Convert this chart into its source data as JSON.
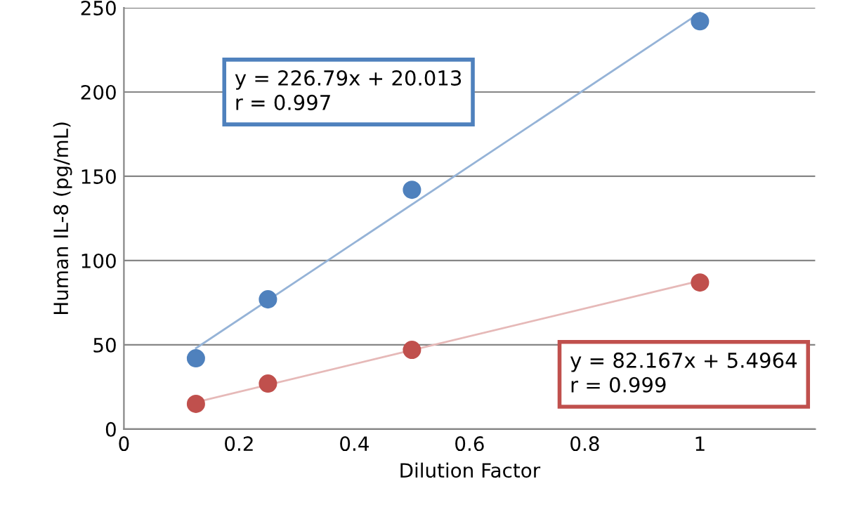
{
  "chart_data": {
    "type": "scatter",
    "xlabel": "Dilution Factor",
    "ylabel": "Human IL-8 (pg/mL)",
    "xlim": [
      0,
      1.2
    ],
    "xticks": [
      0,
      0.2,
      0.4,
      0.6,
      0.8,
      1
    ],
    "ylim": [
      0,
      250
    ],
    "yticks": [
      0,
      50,
      100,
      150,
      200,
      250
    ],
    "grid": "y",
    "series": [
      {
        "color": "#4f81bd",
        "marker": "circle",
        "x": [
          0.125,
          0.25,
          0.5,
          1
        ],
        "values": [
          42,
          77,
          142,
          242
        ]
      },
      {
        "color": "#c0504d",
        "marker": "circle",
        "x": [
          0.125,
          0.25,
          0.5,
          1
        ],
        "values": [
          15,
          27,
          47,
          87
        ]
      },
      {
        "type": "line",
        "marker": "none",
        "color": "#95b3d7",
        "x": [
          0.125,
          1
        ],
        "values": [
          48,
          247
        ]
      },
      {
        "type": "line",
        "marker": "none",
        "color": "#e6b9b8",
        "x": [
          0.125,
          1
        ],
        "values": [
          16,
          88
        ]
      }
    ],
    "annotations": [
      "y = 226.79x + 20.013\nr = 0.997",
      "y = 82.167x + 5.4964\nr = 0.999"
    ]
  }
}
